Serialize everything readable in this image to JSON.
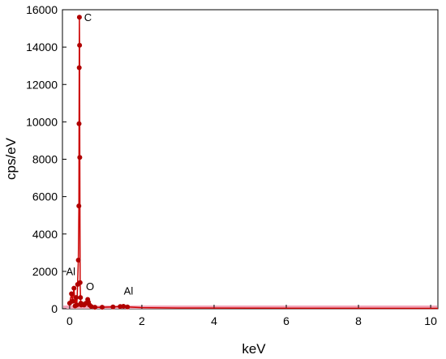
{
  "chart_data": {
    "type": "line",
    "title": "",
    "xlabel": "keV",
    "ylabel": "cps/eV",
    "xlim": [
      -0.2,
      10.2
    ],
    "ylim": [
      0,
      16000
    ],
    "x_ticks": [
      0,
      2,
      4,
      6,
      8,
      10
    ],
    "y_ticks": [
      0,
      2000,
      4000,
      6000,
      8000,
      10000,
      12000,
      14000,
      16000
    ],
    "grid": false,
    "legend": "none",
    "series": [
      {
        "color": "#cc0000",
        "x": [
          0.0,
          0.05,
          0.08,
          0.12,
          0.15,
          0.18,
          0.2,
          0.22,
          0.24,
          0.255,
          0.26,
          0.265,
          0.27,
          0.275,
          0.28,
          0.29,
          0.3,
          0.31,
          0.32,
          0.35,
          0.4,
          0.45,
          0.5,
          0.52,
          0.55,
          0.6,
          0.7,
          0.9,
          1.2,
          1.4,
          1.49,
          1.6,
          2.0,
          3.0,
          5.0,
          7.0,
          10.2
        ],
        "y": [
          300,
          800,
          400,
          1100,
          150,
          600,
          200,
          1300,
          2600,
          5500,
          9900,
          12900,
          15600,
          14100,
          8100,
          1400,
          600,
          300,
          200,
          250,
          200,
          300,
          500,
          350,
          200,
          120,
          80,
          80,
          100,
          120,
          130,
          100,
          60,
          40,
          30,
          25,
          20
        ]
      }
    ],
    "annotations": [
      {
        "text": "C",
        "x": 0.4,
        "y": 15400
      },
      {
        "text": "Al",
        "x": -0.1,
        "y": 1800
      },
      {
        "text": "O",
        "x": 0.45,
        "y": 1000
      },
      {
        "text": "Al",
        "x": 1.5,
        "y": 750
      }
    ]
  }
}
